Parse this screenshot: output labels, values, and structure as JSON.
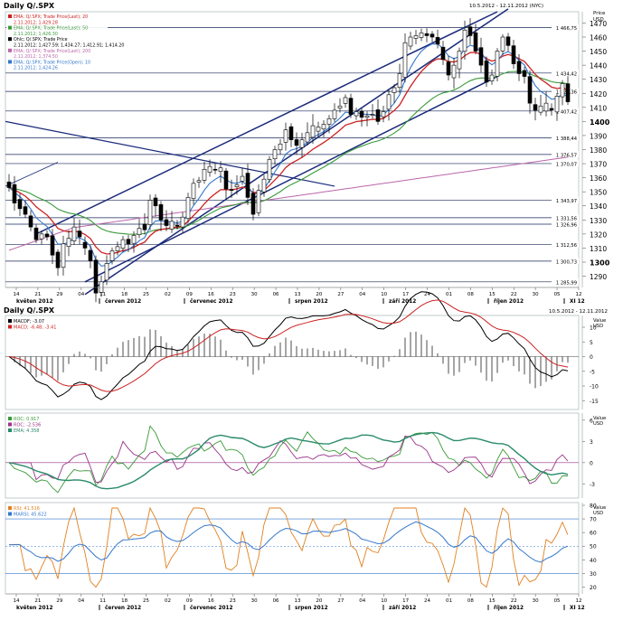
{
  "main_header": {
    "title": "Daily Q/.SPX",
    "date_range": "10.5.2012 - 12.11.2012 (NYC)"
  },
  "price_axis": {
    "label1": "Price",
    "label2": "USD"
  },
  "main_legend": [
    {
      "text": "EMA; Q/.SPX; Trade Price(Last); 20",
      "color": "#cc2222"
    },
    {
      "text": "2.11.2012; 1,429.28",
      "color": "#cc2222"
    },
    {
      "text": "EMA; Q/.SPX; Trade Price(Last); 50",
      "color": "#3a9a3a"
    },
    {
      "text": "2.11.2012; 1,426.30",
      "color": "#3a9a3a"
    },
    {
      "text": "Ohlc; Q/.SPX; Trade Price",
      "color": "#000000"
    },
    {
      "text": "2.11.2012; 1,427.59; 1,434.27; 1,412.91; 1,414.20",
      "color": "#000000"
    },
    {
      "text": "EMA; Q/.SPX; Trade Price(Last); 200",
      "color": "#bb66aa"
    },
    {
      "text": "2.11.2012; 1,374.50",
      "color": "#bb66aa"
    },
    {
      "text": "EMA; Q/.SPX; Trade Price(Open); 10",
      "color": "#3377cc"
    },
    {
      "text": "2.11.2012; 1,424.26",
      "color": "#3377cc"
    }
  ],
  "macd_header": {
    "title": "Daily Q/.SPX",
    "date_range": "10.5.2012 - 12.11.2012"
  },
  "macd_legend": [
    {
      "text": "MACDF; -3.07",
      "color": "#000000"
    },
    {
      "text": "MACD; -6.48; -3.41",
      "color": "#cc2222"
    }
  ],
  "roc_legend": [
    {
      "text": "ROC; 0.917",
      "color": "#3a9a3a"
    },
    {
      "text": "ROC; -2.536",
      "color": "#993388"
    },
    {
      "text": "EMA; 4.358",
      "color": "#2a8a6a"
    }
  ],
  "rsi_legend": [
    {
      "text": "RSI; 41.516",
      "color": "#e08020"
    },
    {
      "text": "MARSI; 45.622",
      "color": "#3377cc"
    }
  ],
  "indicator_axis": {
    "label1": "Value",
    "label2": "USD"
  },
  "x_axis": {
    "ticks": [
      "14",
      "21",
      "29",
      "04",
      "11",
      "18",
      "25",
      "02",
      "09",
      "16",
      "23",
      "30",
      "06",
      "13",
      "20",
      "27",
      "04",
      "10",
      "17",
      "24",
      "01",
      "08",
      "15",
      "22",
      "30",
      "05",
      "12"
    ],
    "months": [
      "květen 2012",
      "červen 2012",
      "červenec 2012",
      "srpen 2012",
      "září 2012",
      "říjen 2012",
      "XI 12"
    ]
  },
  "chart_data": [
    {
      "type": "candlestick",
      "title": "Daily Q/.SPX",
      "ylabel": "Price USD",
      "ylim": [
        1282,
        1478
      ],
      "y_ticks": [
        1290,
        1300,
        1310,
        1320,
        1330,
        1340,
        1350,
        1360,
        1370,
        1380,
        1390,
        1400,
        1410,
        1420,
        1430,
        1440,
        1450,
        1460,
        1470
      ],
      "horizontal_levels": [
        {
          "label": "1 466,75",
          "value": 1466.75
        },
        {
          "label": "1 434,42",
          "value": 1434.42
        },
        {
          "label": "1 421,36",
          "value": 1421.36
        },
        {
          "label": "1 407,42",
          "value": 1407.42
        },
        {
          "label": "1 388,44",
          "value": 1388.44
        },
        {
          "label": "1 376,57",
          "value": 1376.57
        },
        {
          "label": "1 370,07",
          "value": 1370.07
        },
        {
          "label": "1 343,97",
          "value": 1343.97
        },
        {
          "label": "1 331,56",
          "value": 1331.56
        },
        {
          "label": "1 326,96",
          "value": 1326.96
        },
        {
          "label": "1 312,56",
          "value": 1312.56
        },
        {
          "label": "1 300,73",
          "value": 1300.73
        },
        {
          "label": "1 285,99",
          "value": 1285.99
        }
      ],
      "close": [
        1353,
        1342,
        1338,
        1334,
        1325,
        1316,
        1320,
        1318,
        1305,
        1296,
        1313,
        1317,
        1325,
        1318,
        1310,
        1301,
        1278,
        1286,
        1299,
        1308,
        1311,
        1316,
        1313,
        1319,
        1324,
        1323,
        1344,
        1340,
        1330,
        1326,
        1329,
        1326,
        1332,
        1346,
        1356,
        1358,
        1366,
        1368,
        1366,
        1367,
        1352,
        1351,
        1355,
        1361,
        1346,
        1334,
        1351,
        1359,
        1373,
        1380,
        1384,
        1394,
        1387,
        1383,
        1387,
        1392,
        1397,
        1396,
        1398,
        1402,
        1408,
        1411,
        1417,
        1405,
        1407,
        1403,
        1404,
        1405,
        1400,
        1407,
        1419,
        1424,
        1434,
        1456,
        1460,
        1461,
        1463,
        1461,
        1460,
        1455,
        1444,
        1433,
        1440,
        1450,
        1465,
        1461,
        1450,
        1440,
        1428,
        1433,
        1450,
        1460,
        1454,
        1441,
        1434,
        1432,
        1413,
        1408,
        1411,
        1413,
        1408,
        1418,
        1427,
        1414
      ],
      "series": [
        {
          "name": "EMA; Q/.SPX; Trade Price(Last); 20",
          "color": "#cc2222",
          "last_value": 1429.28
        },
        {
          "name": "EMA; Q/.SPX; Trade Price(Last); 50",
          "color": "#3a9a3a",
          "last_value": 1426.3
        },
        {
          "name": "EMA; Q/.SPX; Trade Price(Last); 200",
          "color": "#bb66aa",
          "last_value": 1374.5
        },
        {
          "name": "EMA; Q/.SPX; Trade Price(Open); 10",
          "color": "#3377cc",
          "last_value": 1424.26
        }
      ],
      "last_ohlc": {
        "open": 1427.59,
        "high": 1434.27,
        "low": 1412.91,
        "close": 1414.2
      }
    },
    {
      "type": "line",
      "title": "MACD",
      "ylabel": "Value USD",
      "ylim": [
        -18,
        14
      ],
      "y_ticks": [
        10,
        5,
        0,
        -5,
        -10,
        -15
      ],
      "series": [
        {
          "name": "MACDF",
          "last_value": -3.07
        },
        {
          "name": "MACD",
          "last_value": -6.48
        }
      ]
    },
    {
      "type": "line",
      "title": "ROC",
      "ylabel": "Value USD",
      "ylim": [
        -5,
        7
      ],
      "y_ticks": [
        6,
        3,
        0,
        -3,
        -6
      ],
      "series": [
        {
          "name": "ROC",
          "last_value": 0.917
        },
        {
          "name": "ROC",
          "last_value": -2.536
        },
        {
          "name": "EMA",
          "last_value": 4.358
        }
      ]
    },
    {
      "type": "line",
      "title": "RSI",
      "ylabel": "Value USD",
      "ylim": [
        15,
        82
      ],
      "y_ticks": [
        80,
        70,
        60,
        50,
        40,
        30,
        20
      ],
      "reference_lines": [
        70,
        50,
        30
      ],
      "series": [
        {
          "name": "RSI",
          "color": "#e08020",
          "last_value": 41.516
        },
        {
          "name": "MARSI",
          "color": "#3377cc",
          "last_value": 45.622
        }
      ]
    }
  ]
}
